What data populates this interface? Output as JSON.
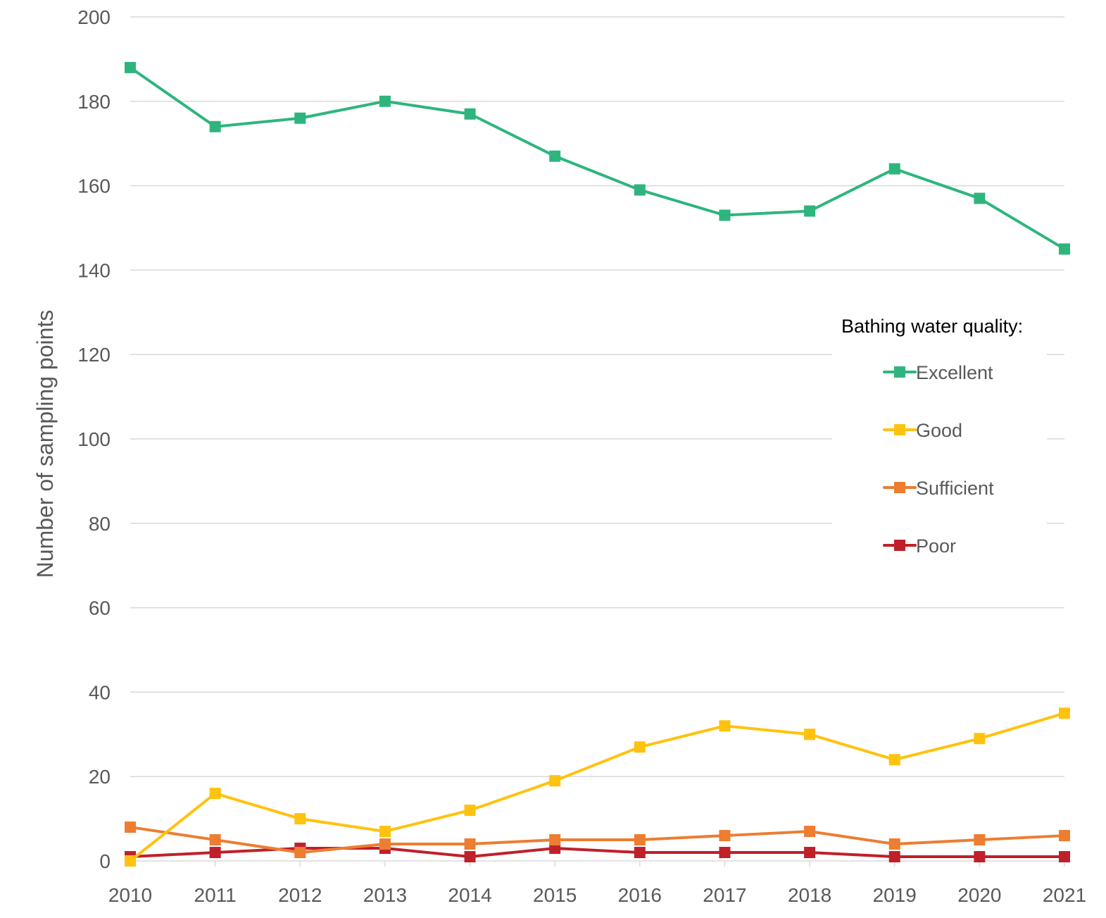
{
  "chart_data": {
    "type": "line",
    "title": "",
    "xlabel": "",
    "ylabel": "Number of sampling points",
    "ylim": [
      0,
      200
    ],
    "yticks": [
      0,
      20,
      40,
      60,
      80,
      100,
      120,
      140,
      160,
      180,
      200
    ],
    "grid": true,
    "categories": [
      "2010",
      "2011",
      "2012",
      "2013",
      "2014",
      "2015",
      "2016",
      "2017",
      "2018",
      "2019",
      "2020",
      "2021"
    ],
    "legend": {
      "title": "Bathing water quality:",
      "placement": "right"
    },
    "series": [
      {
        "name": "Excellent",
        "color": "#2EB57E",
        "values": [
          188,
          174,
          176,
          180,
          177,
          167,
          159,
          153,
          154,
          164,
          157,
          145
        ]
      },
      {
        "name": "Good",
        "color": "#FFC20E",
        "values": [
          0,
          16,
          10,
          7,
          12,
          19,
          27,
          32,
          30,
          24,
          29,
          35
        ]
      },
      {
        "name": "Sufficient",
        "color": "#ED7D31",
        "values": [
          8,
          5,
          2,
          4,
          4,
          5,
          5,
          6,
          7,
          4,
          5,
          6
        ]
      },
      {
        "name": "Poor",
        "color": "#C0202A",
        "values": [
          1,
          2,
          3,
          3,
          1,
          3,
          2,
          2,
          2,
          1,
          1,
          1
        ]
      }
    ]
  }
}
